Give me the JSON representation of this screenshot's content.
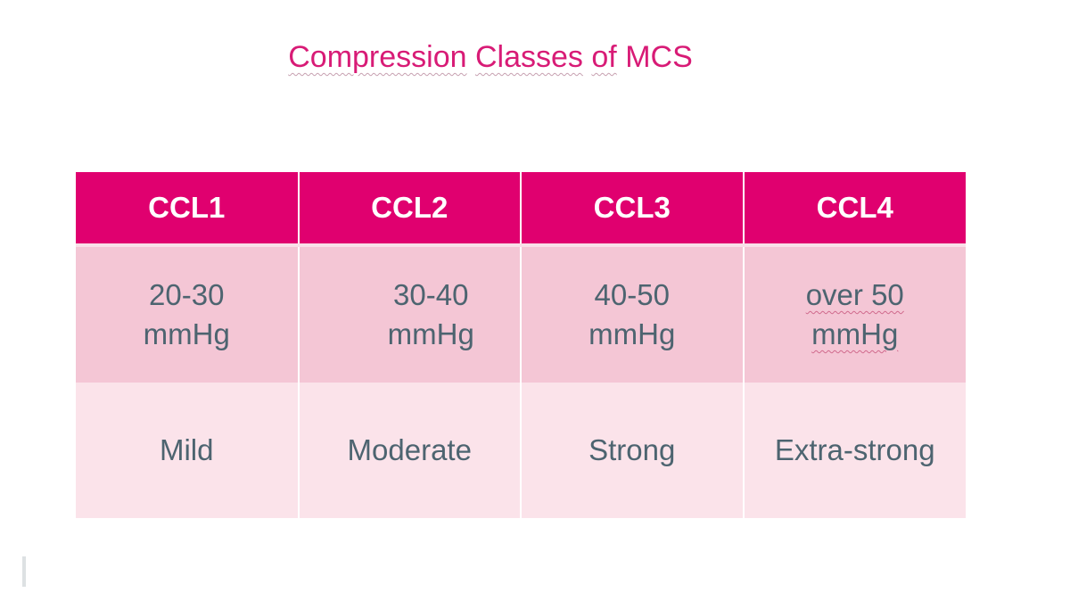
{
  "title": {
    "words": [
      "Compression",
      "Classes",
      "of",
      "MCS"
    ]
  },
  "table": {
    "headers": [
      "CCL1",
      "CCL2",
      "CCL3",
      "CCL4"
    ],
    "pressure": [
      {
        "line1": "20-30",
        "line2": "mmHg"
      },
      {
        "line1": "30-40",
        "line2": "mmHg"
      },
      {
        "line1": "40-50",
        "line2": "mmHg"
      },
      {
        "line1": "over 50",
        "line2": "mmHg"
      }
    ],
    "strength": [
      "Mild",
      "Moderate",
      "Strong",
      "Extra-strong"
    ]
  },
  "colors": {
    "accent": "#e0006f",
    "title": "#d81b76",
    "row_pressure": "#f4c6d5",
    "row_strength": "#fbe3ea",
    "cell_text": "#4d6470"
  }
}
